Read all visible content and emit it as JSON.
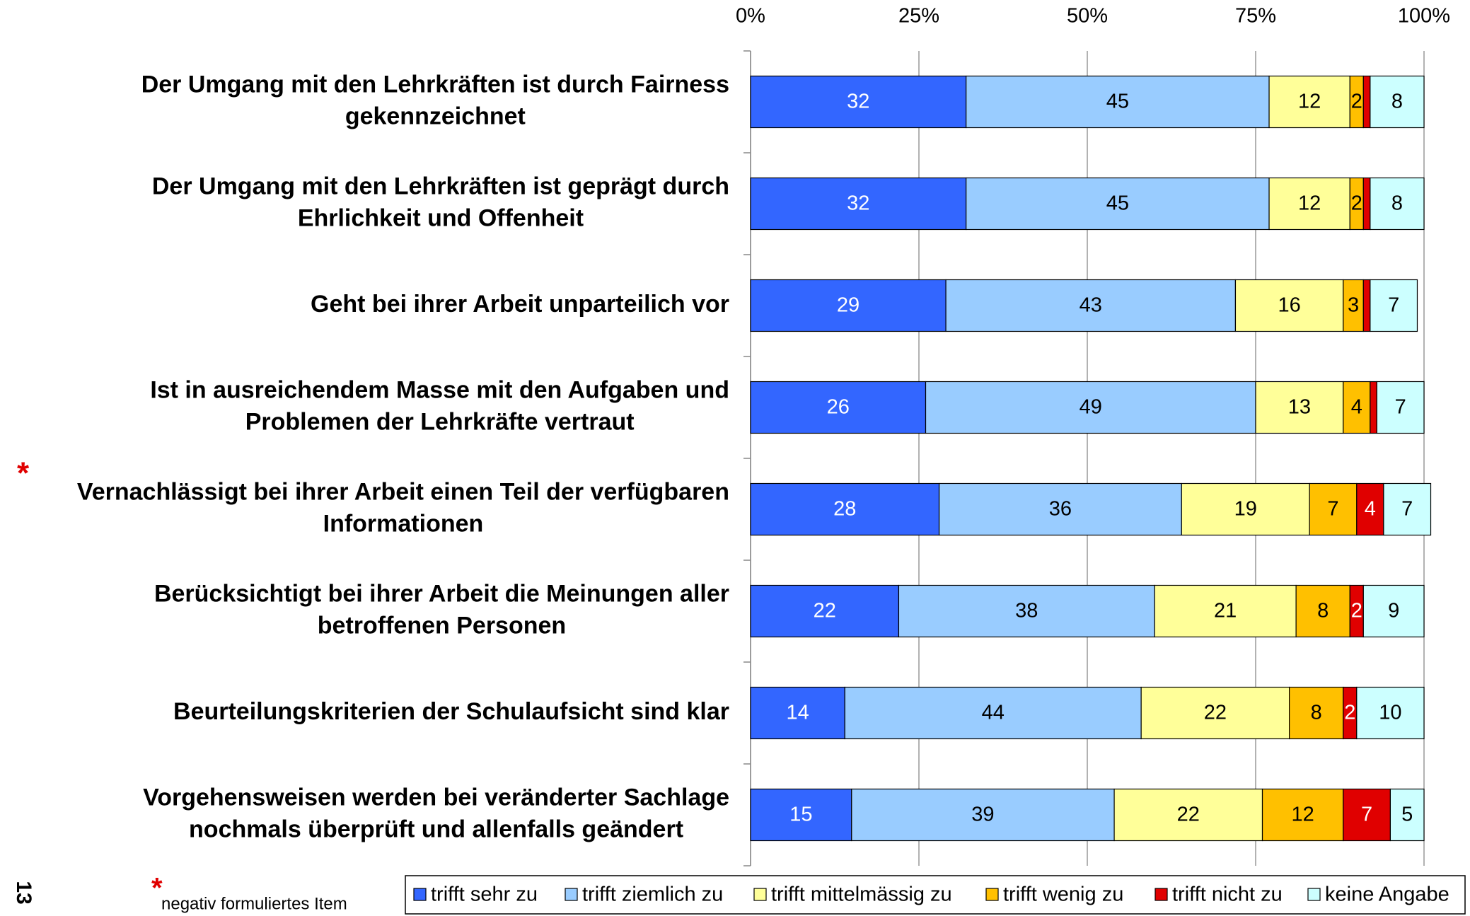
{
  "chart_data": {
    "type": "stacked_barh",
    "categories": [
      "Der Umgang mit den Lehrkräften ist durch Fairness\ngekennzeichnet",
      "Der Umgang mit den Lehrkräften ist geprägt durch\nEhrlichkeit und Offenheit",
      "Geht bei ihrer Arbeit unparteilich vor",
      "Ist in ausreichendem Masse mit den Aufgaben und\nProblemen der Lehrkräfte vertraut",
      "Vernachlässigt bei ihrer Arbeit  einen Teil der verfügbaren\nInformationen",
      "Berücksichtigt bei ihrer Arbeit die Meinungen aller\nbetroffenen Personen",
      "Beurteilungskriterien der Schulaufsicht  sind klar",
      "Vorgehensweisen werden bei veränderter Sachlage\nnochmals überprüft und allenfalls geändert"
    ],
    "series": [
      {
        "name": "trifft sehr zu",
        "color": "#3366FF",
        "label_color": "#ffffff",
        "values": [
          32,
          32,
          29,
          26,
          28,
          22,
          14,
          15
        ]
      },
      {
        "name": "trifft ziemlich zu",
        "color": "#99CCFF",
        "label_color": "#000000",
        "values": [
          45,
          45,
          43,
          49,
          36,
          38,
          44,
          39
        ]
      },
      {
        "name": "trifft mittelmässig zu",
        "color": "#FFFF99",
        "label_color": "#000000",
        "values": [
          12,
          12,
          16,
          13,
          19,
          21,
          22,
          22
        ]
      },
      {
        "name": "trifft wenig zu",
        "color": "#FFC000",
        "label_color": "#000000",
        "values": [
          2,
          2,
          3,
          4,
          7,
          8,
          8,
          12
        ]
      },
      {
        "name": "trifft nicht zu",
        "color": "#E00000",
        "label_color": "#ffffff",
        "values": [
          1,
          1,
          1,
          1,
          4,
          2,
          2,
          7
        ],
        "value_labels": [
          null,
          null,
          null,
          null,
          "4",
          "2",
          "2",
          "7"
        ]
      },
      {
        "name": "keine Angabe",
        "color": "#CCFFFF",
        "label_color": "#000000",
        "values": [
          8,
          8,
          7,
          7,
          7,
          9,
          10,
          5
        ]
      }
    ],
    "xlim": [
      0,
      100
    ],
    "xticks": [
      {
        "value": 0,
        "label": "0%"
      },
      {
        "value": 25,
        "label": "25%"
      },
      {
        "value": 50,
        "label": "50%"
      },
      {
        "value": 75,
        "label": "75%"
      },
      {
        "value": 100,
        "label": "100%"
      }
    ],
    "grid": true,
    "annotations": {
      "marker": "*",
      "marked_category": 4,
      "footnote": "negativ formuliertes Item"
    },
    "page_number": "13"
  }
}
